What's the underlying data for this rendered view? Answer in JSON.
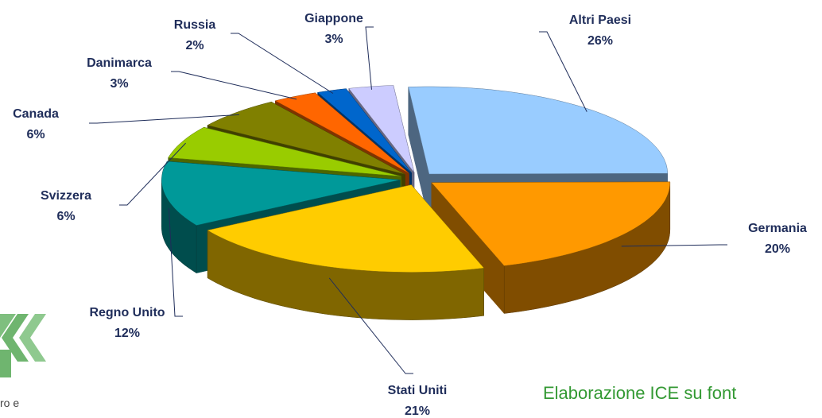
{
  "chart_data": {
    "type": "pie3d",
    "categories": [
      "Altri Paesi",
      "Germania",
      "Stati Uniti",
      "Regno Unito",
      "Svizzera",
      "Canada",
      "Danimarca",
      "Russia",
      "Giappone"
    ],
    "values": [
      26,
      20,
      21,
      12,
      6,
      6,
      3,
      2,
      3
    ],
    "value_labels": [
      "26%",
      "20%",
      "21%",
      "12%",
      "6%",
      "6%",
      "3%",
      "2%",
      "3%"
    ],
    "colors": [
      "#99ccff",
      "#ff9900",
      "#ffcc00",
      "#009999",
      "#99cc00",
      "#808000",
      "#ff6600",
      "#0066cc",
      "#ccccff"
    ],
    "source": "Elaborazione ICE su font",
    "logo_text": "ro e"
  }
}
